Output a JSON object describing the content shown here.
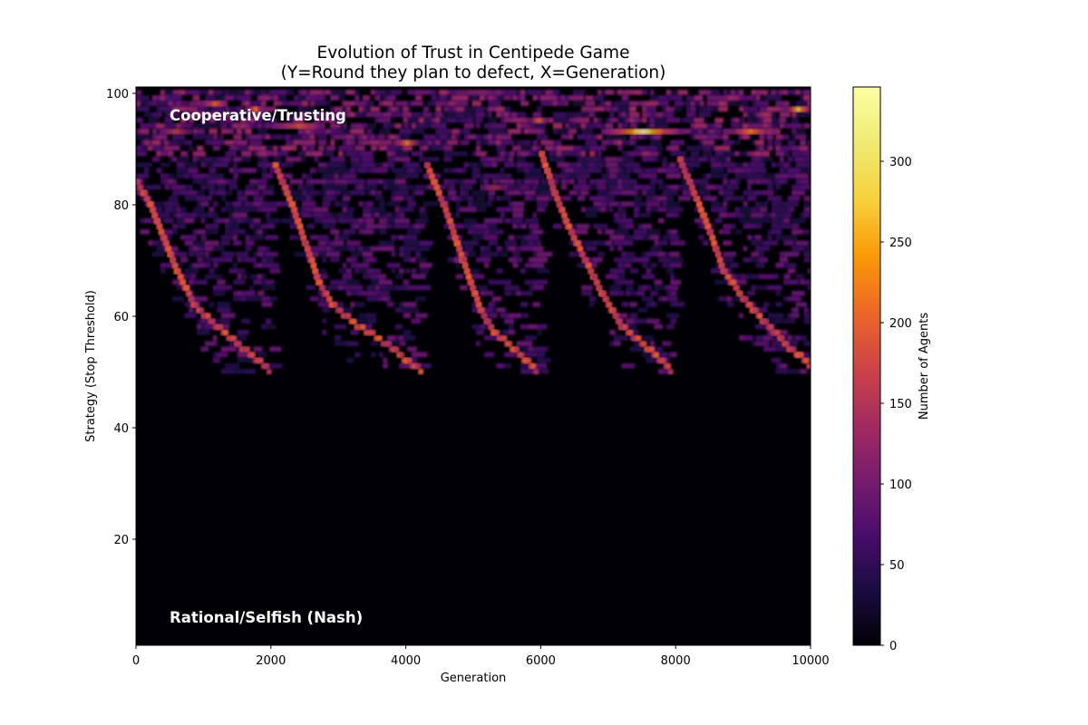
{
  "title_line1": "Evolution of Trust in Centipede Game",
  "title_line2": "(Y=Round they plan to defect, X=Generation)",
  "chart_data": {
    "type": "heatmap",
    "title": "Evolution of Trust in Centipede Game\n(Y=Round they plan to defect, X=Generation)",
    "xlabel": "Generation",
    "ylabel": "Strategy (Stop Threshold)",
    "xlim": [
      0,
      10000
    ],
    "ylim": [
      1,
      101
    ],
    "xticks": [
      0,
      2000,
      4000,
      6000,
      8000,
      10000
    ],
    "xtick_labels": [
      "0",
      "2000",
      "4000",
      "6000",
      "8000",
      "10000"
    ],
    "yticks": [
      20,
      40,
      60,
      80,
      100
    ],
    "ytick_labels": [
      "20",
      "40",
      "60",
      "80",
      "100"
    ],
    "colormap": "inferno",
    "colorbar": {
      "label": "Number of Agents",
      "range": [
        0,
        346
      ],
      "ticks": [
        0,
        50,
        100,
        150,
        200,
        250,
        300
      ],
      "tick_labels": [
        "0",
        "50",
        "100",
        "150",
        "200",
        "250",
        "300"
      ]
    },
    "annotations": [
      {
        "text": "Cooperative/Trusting",
        "x": 500,
        "y": 95
      },
      {
        "text": "Rational/Selfish (Nash)",
        "x": 500,
        "y": 5
      }
    ],
    "grid": false,
    "description": "Five recurring cycles: population starts at cooperative thresholds (~85-100) and a dominant strategy drifts down to ~50 before collapsing back to high thresholds.",
    "streaks": [
      {
        "start_gen": 0,
        "end_gen": 2000,
        "points": [
          [
            0,
            84
          ],
          [
            200,
            80
          ],
          [
            400,
            74
          ],
          [
            600,
            68
          ],
          [
            850,
            62
          ],
          [
            1200,
            58
          ],
          [
            1600,
            54
          ],
          [
            2000,
            50
          ]
        ]
      },
      {
        "start_gen": 2050,
        "end_gen": 4250,
        "points": [
          [
            2050,
            87
          ],
          [
            2300,
            80
          ],
          [
            2500,
            73
          ],
          [
            2700,
            66
          ],
          [
            2900,
            62
          ],
          [
            3300,
            58
          ],
          [
            3700,
            55
          ],
          [
            4000,
            52
          ],
          [
            4250,
            50
          ]
        ]
      },
      {
        "start_gen": 4300,
        "end_gen": 5950,
        "points": [
          [
            4300,
            87
          ],
          [
            4550,
            80
          ],
          [
            4750,
            73
          ],
          [
            4950,
            66
          ],
          [
            5100,
            61
          ],
          [
            5300,
            57
          ],
          [
            5600,
            54
          ],
          [
            5950,
            50
          ]
        ]
      },
      {
        "start_gen": 6000,
        "end_gen": 7950,
        "points": [
          [
            6000,
            89
          ],
          [
            6200,
            82
          ],
          [
            6400,
            76
          ],
          [
            6650,
            70
          ],
          [
            6900,
            64
          ],
          [
            7200,
            58
          ],
          [
            7600,
            54
          ],
          [
            7950,
            50
          ]
        ]
      },
      {
        "start_gen": 8050,
        "end_gen": 10000,
        "points": [
          [
            8050,
            88
          ],
          [
            8300,
            81
          ],
          [
            8500,
            75
          ],
          [
            8700,
            68
          ],
          [
            9000,
            63
          ],
          [
            9300,
            59
          ],
          [
            9700,
            54
          ],
          [
            10000,
            51
          ]
        ]
      }
    ],
    "hotspots": [
      {
        "gen_range": [
          950,
          1350
        ],
        "y": 98,
        "peak": 220
      },
      {
        "gen_range": [
          1600,
          1900
        ],
        "y": 97,
        "peak": 230
      },
      {
        "gen_range": [
          2000,
          2800
        ],
        "y": 94,
        "peak": 200
      },
      {
        "gen_range": [
          350,
          800
        ],
        "y": 93,
        "peak": 180
      },
      {
        "gen_range": [
          3800,
          4200
        ],
        "y": 91,
        "peak": 240
      },
      {
        "gen_range": [
          5800,
          6100
        ],
        "y": 95,
        "peak": 220
      },
      {
        "gen_range": [
          6900,
          8100
        ],
        "y": 93,
        "peak": 346
      },
      {
        "gen_range": [
          8700,
          9500
        ],
        "y": 93,
        "peak": 230
      },
      {
        "gen_range": [
          9600,
          10000
        ],
        "y": 97,
        "peak": 300
      },
      {
        "gen_range": [
          5100,
          5500
        ],
        "y": 83,
        "peak": 150
      },
      {
        "gen_range": [
          4700,
          4900
        ],
        "y": 70,
        "peak": 180
      }
    ]
  }
}
